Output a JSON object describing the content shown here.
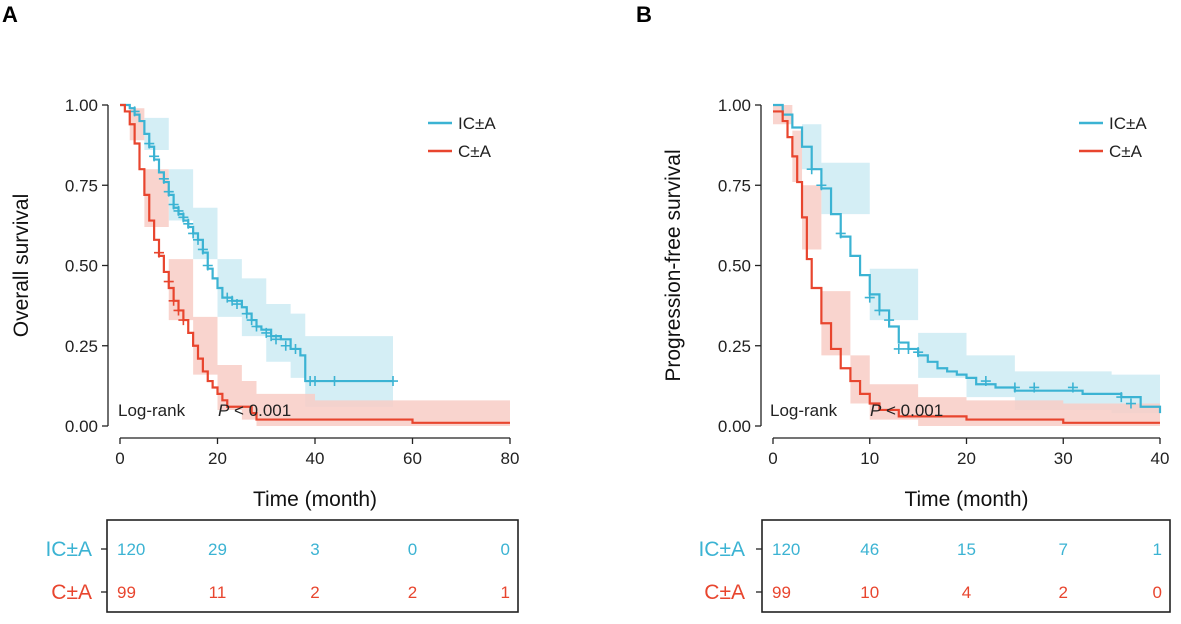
{
  "colors": {
    "ic": "#3bb3d3",
    "c": "#e8452e",
    "ic_band": "#cdebf3",
    "c_band": "#f8cdc6",
    "axis": "#222222"
  },
  "chart_data": [
    {
      "panel": "A",
      "type": "line",
      "subtype": "kaplan-meier",
      "xlabel": "Time (month)",
      "ylabel": "Overall survival",
      "xlim": [
        0,
        80
      ],
      "ylim": [
        0,
        1
      ],
      "xticks": [
        "0",
        "20",
        "40",
        "60",
        "80"
      ],
      "yticks": [
        "0.00",
        "0.25",
        "0.50",
        "0.75",
        "1.00"
      ],
      "legend": [
        "IC±A",
        "C±A"
      ],
      "legend_position": "top-right",
      "annotation": {
        "test": "Log-rank",
        "p_label": "P",
        "p_value": "< 0.001"
      },
      "series": [
        {
          "name": "IC±A",
          "color_key": "ic",
          "steps": [
            [
              0,
              1.0
            ],
            [
              2,
              0.99
            ],
            [
              3,
              0.97
            ],
            [
              4,
              0.95
            ],
            [
              5,
              0.91
            ],
            [
              6,
              0.87
            ],
            [
              7,
              0.83
            ],
            [
              8,
              0.79
            ],
            [
              9,
              0.76
            ],
            [
              10,
              0.72
            ],
            [
              11,
              0.68
            ],
            [
              12,
              0.66
            ],
            [
              13,
              0.64
            ],
            [
              14,
              0.62
            ],
            [
              15,
              0.6
            ],
            [
              16,
              0.58
            ],
            [
              17,
              0.54
            ],
            [
              18,
              0.49
            ],
            [
              19,
              0.46
            ],
            [
              20,
              0.43
            ],
            [
              21,
              0.4
            ],
            [
              23,
              0.39
            ],
            [
              25,
              0.37
            ],
            [
              26,
              0.35
            ],
            [
              27,
              0.33
            ],
            [
              28,
              0.31
            ],
            [
              29,
              0.3
            ],
            [
              31,
              0.28
            ],
            [
              33,
              0.27
            ],
            [
              35,
              0.24
            ],
            [
              37,
              0.22
            ],
            [
              38,
              0.14
            ],
            [
              56,
              0.14
            ]
          ],
          "band": [
            [
              0,
              1.0,
              1.0
            ],
            [
              5,
              0.86,
              0.96
            ],
            [
              10,
              0.64,
              0.8
            ],
            [
              15,
              0.52,
              0.68
            ],
            [
              20,
              0.34,
              0.52
            ],
            [
              25,
              0.28,
              0.46
            ],
            [
              30,
              0.2,
              0.38
            ],
            [
              35,
              0.15,
              0.35
            ],
            [
              38,
              0.06,
              0.28
            ],
            [
              56,
              0.06,
              0.28
            ]
          ],
          "censored": [
            [
              3,
              0.98
            ],
            [
              6,
              0.88
            ],
            [
              7,
              0.84
            ],
            [
              9,
              0.77
            ],
            [
              10,
              0.73
            ],
            [
              11,
              0.69
            ],
            [
              12,
              0.67
            ],
            [
              13,
              0.65
            ],
            [
              14,
              0.63
            ],
            [
              15,
              0.6
            ],
            [
              16,
              0.58
            ],
            [
              17,
              0.55
            ],
            [
              18,
              0.5
            ],
            [
              22,
              0.4
            ],
            [
              23,
              0.39
            ],
            [
              24,
              0.38
            ],
            [
              26,
              0.35
            ],
            [
              27,
              0.33
            ],
            [
              28,
              0.31
            ],
            [
              30,
              0.29
            ],
            [
              31,
              0.28
            ],
            [
              32,
              0.27
            ],
            [
              34,
              0.25
            ],
            [
              36,
              0.24
            ],
            [
              39,
              0.14
            ],
            [
              40,
              0.14
            ],
            [
              44,
              0.14
            ],
            [
              56,
              0.14
            ]
          ]
        },
        {
          "name": "C±A",
          "color_key": "c",
          "steps": [
            [
              0,
              1.0
            ],
            [
              1,
              0.98
            ],
            [
              2,
              0.94
            ],
            [
              3,
              0.88
            ],
            [
              4,
              0.8
            ],
            [
              5,
              0.72
            ],
            [
              6,
              0.64
            ],
            [
              7,
              0.58
            ],
            [
              8,
              0.53
            ],
            [
              9,
              0.48
            ],
            [
              10,
              0.43
            ],
            [
              11,
              0.39
            ],
            [
              12,
              0.36
            ],
            [
              13,
              0.33
            ],
            [
              14,
              0.29
            ],
            [
              15,
              0.25
            ],
            [
              16,
              0.21
            ],
            [
              17,
              0.17
            ],
            [
              18,
              0.14
            ],
            [
              19,
              0.12
            ],
            [
              20,
              0.1
            ],
            [
              21,
              0.08
            ],
            [
              22,
              0.06
            ],
            [
              27,
              0.04
            ],
            [
              28,
              0.02
            ],
            [
              60,
              0.01
            ],
            [
              80,
              0.01
            ]
          ],
          "band": [
            [
              0,
              1.0,
              1.0
            ],
            [
              2,
              0.89,
              0.99
            ],
            [
              5,
              0.62,
              0.8
            ],
            [
              10,
              0.33,
              0.52
            ],
            [
              15,
              0.16,
              0.34
            ],
            [
              20,
              0.05,
              0.19
            ],
            [
              25,
              0.02,
              0.14
            ],
            [
              28,
              0.0,
              0.1
            ],
            [
              40,
              0.0,
              0.08
            ],
            [
              80,
              0.0,
              0.07
            ]
          ],
          "censored": [
            [
              8,
              0.54
            ],
            [
              10,
              0.45
            ],
            [
              11,
              0.39
            ],
            [
              12,
              0.36
            ],
            [
              13,
              0.33
            ]
          ]
        }
      ],
      "risk_table": {
        "rows": [
          {
            "label": "IC±A",
            "color_key": "ic",
            "values": [
              "120",
              "29",
              "3",
              "0",
              "0"
            ]
          },
          {
            "label": "C±A",
            "color_key": "c",
            "values": [
              "99",
              "11",
              "2",
              "2",
              "1"
            ]
          }
        ]
      }
    },
    {
      "panel": "B",
      "type": "line",
      "subtype": "kaplan-meier",
      "xlabel": "Time (month)",
      "ylabel": "Progression-free survival",
      "xlim": [
        0,
        40
      ],
      "ylim": [
        0,
        1
      ],
      "xticks": [
        "0",
        "10",
        "20",
        "30",
        "40"
      ],
      "yticks": [
        "0.00",
        "0.25",
        "0.50",
        "0.75",
        "1.00"
      ],
      "legend": [
        "IC±A",
        "C±A"
      ],
      "legend_position": "top-right",
      "annotation": {
        "test": "Log-rank",
        "p_label": "P",
        "p_value": "< 0.001"
      },
      "series": [
        {
          "name": "IC±A",
          "color_key": "ic",
          "steps": [
            [
              0,
              1.0
            ],
            [
              1,
              0.97
            ],
            [
              2,
              0.93
            ],
            [
              3,
              0.87
            ],
            [
              4,
              0.8
            ],
            [
              5,
              0.74
            ],
            [
              6,
              0.66
            ],
            [
              7,
              0.59
            ],
            [
              8,
              0.53
            ],
            [
              9,
              0.47
            ],
            [
              10,
              0.41
            ],
            [
              11,
              0.36
            ],
            [
              12,
              0.31
            ],
            [
              13,
              0.26
            ],
            [
              14,
              0.24
            ],
            [
              15,
              0.22
            ],
            [
              16,
              0.2
            ],
            [
              17,
              0.18
            ],
            [
              18,
              0.17
            ],
            [
              19,
              0.16
            ],
            [
              20,
              0.15
            ],
            [
              21,
              0.13
            ],
            [
              23,
              0.12
            ],
            [
              25,
              0.11
            ],
            [
              30,
              0.11
            ],
            [
              32,
              0.1
            ],
            [
              36,
              0.09
            ],
            [
              38,
              0.06
            ],
            [
              40,
              0.04
            ]
          ],
          "band": [
            [
              0,
              1.0,
              1.0
            ],
            [
              3,
              0.8,
              0.94
            ],
            [
              5,
              0.66,
              0.82
            ],
            [
              10,
              0.33,
              0.49
            ],
            [
              15,
              0.15,
              0.29
            ],
            [
              20,
              0.09,
              0.22
            ],
            [
              25,
              0.05,
              0.17
            ],
            [
              30,
              0.05,
              0.17
            ],
            [
              35,
              0.04,
              0.16
            ],
            [
              40,
              0.0,
              0.14
            ]
          ],
          "censored": [
            [
              4,
              0.8
            ],
            [
              5,
              0.75
            ],
            [
              7,
              0.6
            ],
            [
              10,
              0.4
            ],
            [
              11,
              0.36
            ],
            [
              12,
              0.33
            ],
            [
              13,
              0.24
            ],
            [
              14,
              0.24
            ],
            [
              15,
              0.23
            ],
            [
              22,
              0.14
            ],
            [
              25,
              0.12
            ],
            [
              27,
              0.12
            ],
            [
              31,
              0.12
            ],
            [
              36,
              0.09
            ],
            [
              37,
              0.07
            ]
          ]
        },
        {
          "name": "C±A",
          "color_key": "c",
          "steps": [
            [
              0,
              0.98
            ],
            [
              1,
              0.95
            ],
            [
              1.5,
              0.9
            ],
            [
              2,
              0.84
            ],
            [
              2.5,
              0.76
            ],
            [
              3,
              0.65
            ],
            [
              3.5,
              0.52
            ],
            [
              4,
              0.43
            ],
            [
              5,
              0.32
            ],
            [
              6,
              0.24
            ],
            [
              7,
              0.18
            ],
            [
              8,
              0.14
            ],
            [
              9,
              0.1
            ],
            [
              10,
              0.07
            ],
            [
              11,
              0.05
            ],
            [
              13,
              0.03
            ],
            [
              15,
              0.03
            ],
            [
              20,
              0.02
            ],
            [
              30,
              0.01
            ],
            [
              40,
              0.01
            ]
          ],
          "band": [
            [
              0,
              0.94,
              1.0
            ],
            [
              2,
              0.76,
              0.92
            ],
            [
              3,
              0.55,
              0.75
            ],
            [
              5,
              0.22,
              0.42
            ],
            [
              8,
              0.07,
              0.22
            ],
            [
              10,
              0.02,
              0.13
            ],
            [
              15,
              0.0,
              0.09
            ],
            [
              20,
              0.0,
              0.08
            ],
            [
              30,
              0.0,
              0.07
            ],
            [
              40,
              0.0,
              0.06
            ]
          ],
          "censored": []
        }
      ],
      "risk_table": {
        "rows": [
          {
            "label": "IC±A",
            "color_key": "ic",
            "values": [
              "120",
              "46",
              "15",
              "7",
              "1"
            ]
          },
          {
            "label": "C±A",
            "color_key": "c",
            "values": [
              "99",
              "10",
              "4",
              "2",
              "0"
            ]
          }
        ]
      }
    }
  ]
}
